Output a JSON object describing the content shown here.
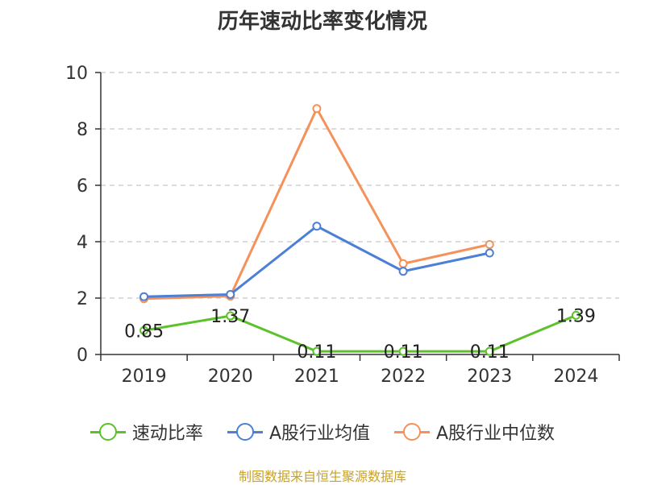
{
  "chart_data": {
    "type": "line",
    "title": "历年速动比率变化情况",
    "categories": [
      "2019",
      "2020",
      "2021",
      "2022",
      "2023",
      "2024"
    ],
    "ylim": [
      0,
      10
    ],
    "yticks": [
      0,
      2,
      4,
      6,
      8,
      10
    ],
    "grid": true,
    "legend_position": "bottom",
    "series": [
      {
        "name": "速动比率",
        "color": "#5cc12a",
        "values": [
          0.85,
          1.37,
          0.11,
          0.11,
          0.11,
          1.39
        ],
        "labels": [
          "0.85",
          "1.37",
          "0.11",
          "0.11",
          "0.11",
          "1.39"
        ]
      },
      {
        "name": "A股行业均值",
        "color": "#4c7fd6",
        "values": [
          2.05,
          2.13,
          4.55,
          2.95,
          3.6,
          null
        ]
      },
      {
        "name": "A股行业中位数",
        "color": "#f5915a",
        "values": [
          1.98,
          2.07,
          8.72,
          3.22,
          3.9,
          null
        ]
      }
    ]
  },
  "source": "制图数据来自恒生聚源数据库"
}
